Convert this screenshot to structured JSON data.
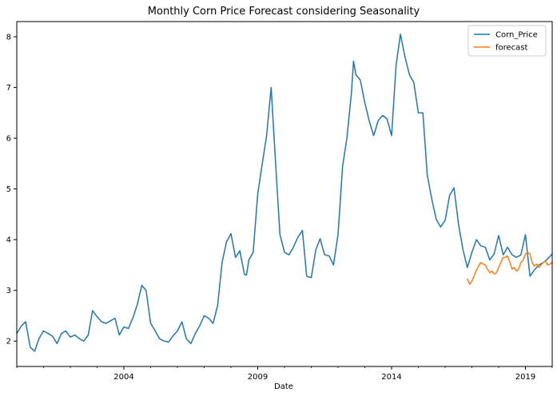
{
  "chart_data": {
    "type": "line",
    "title": "Monthly Corn Price Forecast considering Seasonality",
    "xlabel": "Date",
    "ylabel": "",
    "x_unit": "year",
    "xlim": [
      2000.0,
      2020.0
    ],
    "ylim": [
      1.5,
      8.3
    ],
    "x_ticks": [
      2004,
      2009,
      2014,
      2019
    ],
    "y_ticks": [
      2,
      3,
      4,
      5,
      6,
      7,
      8
    ],
    "grid": false,
    "legend_position": "top-right",
    "colors": {
      "Corn_Price": "#1f77b4",
      "forecast": "#ff7f0e"
    },
    "series": [
      {
        "name": "Corn_Price",
        "x": [
          2000.0,
          2000.17,
          2000.33,
          2000.5,
          2000.67,
          2000.83,
          2001.0,
          2001.17,
          2001.33,
          2001.5,
          2001.67,
          2001.83,
          2002.0,
          2002.17,
          2002.33,
          2002.5,
          2002.67,
          2002.83,
          2003.0,
          2003.17,
          2003.33,
          2003.5,
          2003.67,
          2003.83,
          2004.0,
          2004.17,
          2004.33,
          2004.5,
          2004.67,
          2004.83,
          2005.0,
          2005.17,
          2005.33,
          2005.5,
          2005.67,
          2005.83,
          2006.0,
          2006.17,
          2006.33,
          2006.5,
          2006.67,
          2006.83,
          2007.0,
          2007.17,
          2007.33,
          2007.5,
          2007.67,
          2007.83,
          2008.0,
          2008.17,
          2008.33,
          2008.5,
          2008.58,
          2008.67,
          2008.83,
          2009.0,
          2009.17,
          2009.33,
          2009.5,
          2009.67,
          2009.83,
          2010.0,
          2010.17,
          2010.33,
          2010.5,
          2010.67,
          2010.83,
          2011.0,
          2011.17,
          2011.33,
          2011.5,
          2011.67,
          2011.83,
          2012.0,
          2012.17,
          2012.33,
          2012.5,
          2012.58,
          2012.67,
          2012.83,
          2013.0,
          2013.17,
          2013.33,
          2013.5,
          2013.67,
          2013.83,
          2014.0,
          2014.17,
          2014.33,
          2014.5,
          2014.67,
          2014.83,
          2015.0,
          2015.17,
          2015.33,
          2015.5,
          2015.67,
          2015.83,
          2016.0,
          2016.17,
          2016.33,
          2016.5,
          2016.67,
          2016.83,
          2017.0,
          2017.17,
          2017.33,
          2017.5,
          2017.67,
          2017.83,
          2018.0,
          2018.17,
          2018.33,
          2018.5,
          2018.67,
          2018.83,
          2019.0,
          2019.17,
          2019.33,
          2019.5,
          2019.67,
          2019.83,
          2020.0
        ],
        "values": [
          2.15,
          2.3,
          2.38,
          1.88,
          1.8,
          2.05,
          2.2,
          2.15,
          2.1,
          1.95,
          2.15,
          2.2,
          2.08,
          2.12,
          2.05,
          2.0,
          2.12,
          2.6,
          2.48,
          2.38,
          2.35,
          2.4,
          2.45,
          2.12,
          2.28,
          2.25,
          2.45,
          2.72,
          3.1,
          3.0,
          2.35,
          2.2,
          2.05,
          2.0,
          1.98,
          2.1,
          2.2,
          2.38,
          2.05,
          1.95,
          2.15,
          2.3,
          2.5,
          2.45,
          2.35,
          2.7,
          3.55,
          3.95,
          4.12,
          3.65,
          3.78,
          3.32,
          3.3,
          3.6,
          3.75,
          4.9,
          5.5,
          6.05,
          7.0,
          5.5,
          4.1,
          3.75,
          3.7,
          3.85,
          4.05,
          4.18,
          3.28,
          3.25,
          3.8,
          4.02,
          3.7,
          3.68,
          3.5,
          4.1,
          5.45,
          6.0,
          6.9,
          7.52,
          7.25,
          7.15,
          6.7,
          6.33,
          6.05,
          6.35,
          6.45,
          6.38,
          6.05,
          7.45,
          8.05,
          7.6,
          7.25,
          7.1,
          6.5,
          6.5,
          5.28,
          4.8,
          4.4,
          4.25,
          4.38,
          4.88,
          5.02,
          4.3,
          3.8,
          3.45,
          3.75,
          4.0,
          3.88,
          3.85,
          3.6,
          3.72,
          4.08,
          3.7,
          3.85,
          3.7,
          3.65,
          3.7,
          4.1,
          3.28,
          3.4,
          3.5,
          3.55,
          3.62,
          3.72
        ],
        "values_tail": []
      },
      {
        "name": "forecast",
        "x": [
          2016.83,
          2016.92,
          2017.0,
          2017.08,
          2017.17,
          2017.25,
          2017.33,
          2017.42,
          2017.5,
          2017.58,
          2017.67,
          2017.75,
          2017.83,
          2017.92,
          2018.0,
          2018.08,
          2018.17,
          2018.25,
          2018.33,
          2018.42,
          2018.5,
          2018.58,
          2018.67,
          2018.75,
          2018.83,
          2018.92,
          2019.0,
          2019.08,
          2019.17,
          2019.25,
          2019.33,
          2019.42,
          2019.5,
          2019.58,
          2019.67,
          2019.75,
          2019.83,
          2019.92,
          2020.0
        ],
        "values": [
          3.22,
          3.12,
          3.18,
          3.28,
          3.4,
          3.48,
          3.55,
          3.52,
          3.5,
          3.42,
          3.35,
          3.38,
          3.32,
          3.35,
          3.45,
          3.55,
          3.65,
          3.65,
          3.68,
          3.55,
          3.42,
          3.45,
          3.38,
          3.42,
          3.55,
          3.6,
          3.72,
          3.75,
          3.72,
          3.55,
          3.48,
          3.52,
          3.45,
          3.5,
          3.55,
          3.58,
          3.5,
          3.52,
          3.55
        ]
      }
    ]
  }
}
